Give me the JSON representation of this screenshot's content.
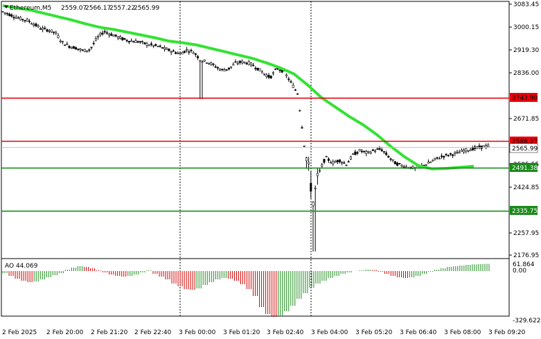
{
  "main_pane": {
    "symbol_label": "Ethereum,M5",
    "ohlc": [
      "2559.07",
      "2566.17",
      "2557.22",
      "2565.99"
    ],
    "price_ticks": [
      "3083.45",
      "3000.15",
      "2919.30",
      "2836.00",
      "2671.85",
      "2595.55",
      "2424.85",
      "2257.95",
      "2176.95"
    ],
    "levels": [
      {
        "label": "2743.90",
        "price": 2743.9,
        "color": "#e8000b"
      },
      {
        "label": "2588.27",
        "price": 2588.27,
        "color": "#e8000b"
      },
      {
        "label": "2491.38",
        "price": 2491.38,
        "color": "#1a8a1a"
      },
      {
        "label": "2335.75",
        "price": 2335.75,
        "color": "#1a8a1a"
      }
    ],
    "current_price": {
      "label": "2565.99",
      "price": 2565.99
    },
    "ma_color": "#33e233"
  },
  "ao_pane": {
    "title": "AO 44.069",
    "ticks": [
      "61.864",
      "0.00",
      "-329.622"
    ]
  },
  "time_axis": [
    "2 Feb 2025",
    "2 Feb 20:00",
    "2 Feb 21:20",
    "2 Feb 22:40",
    "3 Feb 00:00",
    "3 Feb 01:20",
    "3 Feb 02:40",
    "3 Feb 04:00",
    "3 Feb 05:20",
    "3 Feb 06:40",
    "3 Feb 08:00",
    "3 Feb 09:20"
  ],
  "chart_data": {
    "type": "candlestick",
    "price_range": [
      2176.95,
      3083.45
    ],
    "levels": [
      2743.9,
      2588.27,
      2491.38,
      2335.75
    ],
    "ma_path": [
      [
        0,
        3078
      ],
      [
        20,
        3070
      ],
      [
        40,
        3062
      ],
      [
        60,
        3050
      ],
      [
        80,
        3038
      ],
      [
        100,
        3026
      ],
      [
        120,
        3012
      ],
      [
        140,
        3000
      ],
      [
        160,
        2992
      ],
      [
        180,
        2982
      ],
      [
        200,
        2972
      ],
      [
        220,
        2962
      ],
      [
        240,
        2950
      ],
      [
        260,
        2944
      ],
      [
        280,
        2936
      ],
      [
        300,
        2924
      ],
      [
        320,
        2912
      ],
      [
        340,
        2900
      ],
      [
        360,
        2888
      ],
      [
        380,
        2872
      ],
      [
        400,
        2854
      ],
      [
        420,
        2832
      ],
      [
        440,
        2792
      ],
      [
        460,
        2746
      ],
      [
        480,
        2712
      ],
      [
        500,
        2678
      ],
      [
        520,
        2648
      ],
      [
        540,
        2612
      ],
      [
        560,
        2570
      ],
      [
        580,
        2532
      ],
      [
        600,
        2500
      ],
      [
        620,
        2488
      ],
      [
        640,
        2490
      ],
      [
        660,
        2494
      ],
      [
        680,
        2498
      ]
    ],
    "candle_path": [
      [
        0,
        3060
      ],
      [
        10,
        3050
      ],
      [
        20,
        3040
      ],
      [
        30,
        3030
      ],
      [
        40,
        3025
      ],
      [
        50,
        3010
      ],
      [
        60,
        2995
      ],
      [
        70,
        2990
      ],
      [
        80,
        2980
      ],
      [
        90,
        2945
      ],
      [
        100,
        2932
      ],
      [
        110,
        2925
      ],
      [
        120,
        2915
      ],
      [
        130,
        2920
      ],
      [
        140,
        2960
      ],
      [
        150,
        2985
      ],
      [
        160,
        2975
      ],
      [
        170,
        2965
      ],
      [
        180,
        2955
      ],
      [
        190,
        2950
      ],
      [
        200,
        2948
      ],
      [
        210,
        2940
      ],
      [
        220,
        2935
      ],
      [
        230,
        2930
      ],
      [
        240,
        2920
      ],
      [
        250,
        2912
      ],
      [
        260,
        2905
      ],
      [
        270,
        2918
      ],
      [
        280,
        2910
      ],
      [
        290,
        2880
      ],
      [
        300,
        2875
      ],
      [
        310,
        2860
      ],
      [
        320,
        2845
      ],
      [
        330,
        2850
      ],
      [
        340,
        2870
      ],
      [
        350,
        2875
      ],
      [
        360,
        2870
      ],
      [
        370,
        2855
      ],
      [
        380,
        2835
      ],
      [
        390,
        2818
      ],
      [
        400,
        2852
      ],
      [
        410,
        2840
      ],
      [
        420,
        2800
      ],
      [
        430,
        2760
      ],
      [
        440,
        2560
      ],
      [
        446,
        2480
      ],
      [
        452,
        2370
      ],
      [
        460,
        2470
      ],
      [
        470,
        2530
      ],
      [
        480,
        2510
      ],
      [
        490,
        2520
      ],
      [
        500,
        2505
      ],
      [
        510,
        2540
      ],
      [
        520,
        2555
      ],
      [
        530,
        2545
      ],
      [
        540,
        2555
      ],
      [
        550,
        2560
      ],
      [
        560,
        2535
      ],
      [
        570,
        2510
      ],
      [
        580,
        2500
      ],
      [
        590,
        2495
      ],
      [
        600,
        2490
      ],
      [
        610,
        2500
      ],
      [
        620,
        2510
      ],
      [
        630,
        2525
      ],
      [
        640,
        2535
      ],
      [
        650,
        2540
      ],
      [
        660,
        2545
      ],
      [
        670,
        2555
      ],
      [
        680,
        2560
      ],
      [
        690,
        2565
      ],
      [
        700,
        2570
      ]
    ],
    "ao_values": [
      -0.15,
      -0.35,
      -0.55,
      -0.7,
      -0.8,
      -0.75,
      -0.6,
      -0.45,
      -0.3,
      -0.15,
      0.1,
      0.25,
      0.35,
      0.3,
      0.2,
      0.05,
      -0.1,
      -0.25,
      -0.35,
      -0.4,
      -0.35,
      -0.25,
      -0.1,
      0.05,
      -0.2,
      -0.4,
      -0.6,
      -0.9,
      -1.1,
      -1.3,
      -1.35,
      -1.25,
      -1.0,
      -0.8,
      -0.6,
      -0.5,
      -0.55,
      -0.7,
      -0.95,
      -1.3,
      -1.8,
      -2.6,
      -3.1,
      -3.3,
      -3.2,
      -2.9,
      -2.5,
      -2.0,
      -1.6,
      -1.2,
      -0.9,
      -0.7,
      -0.5,
      -0.35,
      -0.2,
      -0.1,
      0.0,
      0.05,
      0.1,
      0.08,
      -0.05,
      -0.2,
      -0.35,
      -0.45,
      -0.5,
      -0.45,
      -0.35,
      -0.2,
      -0.05,
      0.1,
      0.2,
      0.3,
      0.35,
      0.4,
      0.45,
      0.48,
      0.5,
      0.52
    ]
  }
}
